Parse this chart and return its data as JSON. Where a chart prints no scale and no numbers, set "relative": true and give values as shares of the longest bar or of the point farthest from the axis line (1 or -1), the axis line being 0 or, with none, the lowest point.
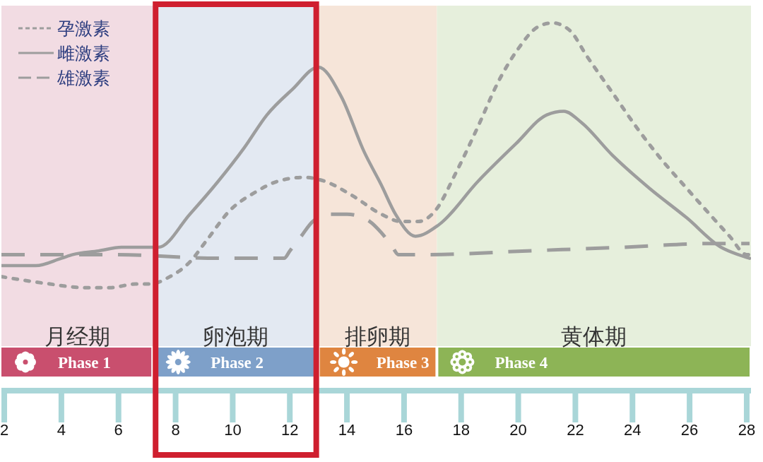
{
  "chart_data": {
    "type": "line",
    "relative": true,
    "xlim": [
      1.9,
      28.15
    ],
    "xticks": [
      2,
      4,
      6,
      8,
      10,
      12,
      14,
      16,
      18,
      20,
      22,
      24,
      26,
      28
    ],
    "marker": "none",
    "legend": "top left",
    "series": [
      {
        "name": "孕激素",
        "color": "#9d9d9d",
        "line_style": "dotted",
        "x": [
          1.9,
          2.7,
          3.6,
          4.8,
          5.7,
          6.6,
          7.1,
          7.8,
          8.5,
          9.1,
          9.9,
          10.8,
          11.6,
          12.5,
          13.2,
          14.2,
          15.2,
          15.9,
          16.5,
          17.1,
          17.8,
          18.6,
          19.3,
          20,
          20.7,
          21.2,
          21.8,
          22.4,
          23.3,
          24.2,
          25,
          25.9,
          26.7,
          27.4,
          28,
          28.1
        ],
        "values": [
          0.31,
          0.3,
          0.29,
          0.28,
          0.28,
          0.29,
          0.29,
          0.31,
          0.35,
          0.41,
          0.49,
          0.54,
          0.57,
          0.58,
          0.57,
          0.53,
          0.48,
          0.46,
          0.46,
          0.49,
          0.59,
          0.72,
          0.84,
          0.93,
          0.99,
          1,
          0.98,
          0.91,
          0.81,
          0.71,
          0.63,
          0.55,
          0.48,
          0.42,
          0.37,
          0.37
        ]
      },
      {
        "name": "雌激素",
        "color": "#9d9d9d",
        "line_style": "solid",
        "x": [
          1.9,
          3.1,
          4,
          4.4,
          5.3,
          6.1,
          7.4,
          8.5,
          9.5,
          10.4,
          11.2,
          12.1,
          13,
          13.8,
          14.6,
          15.2,
          15.7,
          16.4,
          17.2,
          18.6,
          19.9,
          21,
          21.6,
          22.2,
          23.3,
          24.6,
          25.9,
          27.1,
          27.7,
          28.1
        ],
        "values": [
          0.34,
          0.34,
          0.36,
          0.37,
          0.38,
          0.39,
          0.39,
          0.48,
          0.57,
          0.66,
          0.75,
          0.82,
          0.88,
          0.8,
          0.65,
          0.56,
          0.48,
          0.42,
          0.45,
          0.57,
          0.67,
          0.75,
          0.76,
          0.73,
          0.64,
          0.55,
          0.47,
          0.39,
          0.37,
          0.36
        ]
      },
      {
        "name": "雄激素",
        "color": "#9d9d9d",
        "line_style": "dashed",
        "x": [
          1.9,
          5.9,
          9.5,
          11.8,
          12,
          12.4,
          12.8,
          13.4,
          14,
          14.8,
          15.2,
          15.6,
          15.8,
          16.9,
          20.3,
          23.7,
          26.7,
          28.1
        ],
        "values": [
          0.37,
          0.37,
          0.36,
          0.36,
          0.38,
          0.42,
          0.46,
          0.48,
          0.48,
          0.46,
          0.43,
          0.39,
          0.37,
          0.37,
          0.38,
          0.39,
          0.4,
          0.4
        ]
      }
    ],
    "bands": [
      {
        "axis": "x",
        "from": 1.9,
        "to": 7.2,
        "label": "月经期",
        "color": "#f2dce3"
      },
      {
        "axis": "x",
        "from": 7.2,
        "to": 13,
        "label": "卵泡期",
        "color": "#e3e9f2"
      },
      {
        "axis": "x",
        "from": 13,
        "to": 17.15,
        "label": "排卵期",
        "color": "#f6e5d9"
      },
      {
        "axis": "x",
        "from": 17.15,
        "to": 28.15,
        "label": "黄体期",
        "color": "#e6efdc"
      }
    ],
    "annotations": [
      "Phase 1",
      "Phase 2",
      "Phase 3",
      "Phase 4"
    ]
  }
}
